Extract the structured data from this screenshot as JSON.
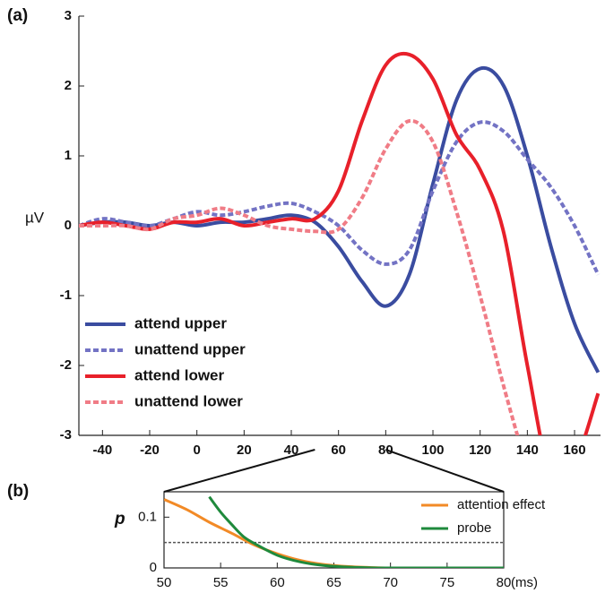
{
  "chart_data": [
    {
      "type": "line",
      "panel_label": "(a)",
      "ylabel": "µV",
      "x": [
        -50,
        -40,
        -30,
        -20,
        -10,
        0,
        10,
        20,
        30,
        40,
        50,
        60,
        70,
        80,
        90,
        100,
        110,
        120,
        130,
        140,
        150,
        160,
        170
      ],
      "xlim": [
        -50,
        171
      ],
      "xticks": [
        -40,
        -20,
        0,
        20,
        40,
        60,
        80,
        100,
        120,
        140,
        160
      ],
      "ylim": [
        -3,
        3
      ],
      "yticks": [
        -3,
        -2,
        -1,
        0,
        1,
        2,
        3
      ],
      "series": [
        {
          "name": "attend upper",
          "color": "#3a4ca0",
          "dashed": false,
          "values": [
            0,
            0.05,
            0.05,
            0,
            0.05,
            0,
            0.05,
            0.05,
            0.1,
            0.15,
            0.05,
            -0.3,
            -0.8,
            -1.15,
            -0.7,
            0.6,
            1.8,
            2.25,
            2.0,
            1.0,
            -0.3,
            -1.4,
            -2.1
          ]
        },
        {
          "name": "unattend upper",
          "color": "#7373c4",
          "dashed": true,
          "values": [
            0,
            0.1,
            0.05,
            0,
            0.1,
            0.2,
            0.15,
            0.2,
            0.28,
            0.32,
            0.2,
            0,
            -0.35,
            -0.55,
            -0.35,
            0.5,
            1.2,
            1.48,
            1.35,
            0.95,
            0.55,
            0,
            -0.7
          ]
        },
        {
          "name": "attend lower",
          "color": "#e8202a",
          "dashed": false,
          "values": [
            0,
            0.05,
            0,
            -0.05,
            0.05,
            0.05,
            0.1,
            0,
            0.05,
            0.1,
            0.1,
            0.5,
            1.5,
            2.3,
            2.45,
            2.1,
            1.3,
            0.8,
            -0.1,
            -2.0,
            -3.6,
            -3.4,
            -2.4
          ]
        },
        {
          "name": "unattend lower",
          "color": "#f07c86",
          "dashed": true,
          "values": [
            0,
            0,
            0,
            -0.05,
            0.1,
            0.15,
            0.25,
            0.15,
            0,
            -0.05,
            -0.08,
            -0.05,
            0.4,
            1.1,
            1.5,
            1.2,
            0.2,
            -1.0,
            -2.3,
            -3.5,
            null,
            null,
            null
          ]
        }
      ]
    },
    {
      "type": "line",
      "panel_label": "(b)",
      "ylabel": "p",
      "xlabel": "(ms)",
      "xlim": [
        50,
        80
      ],
      "xticks": [
        50,
        55,
        60,
        65,
        70,
        75,
        80
      ],
      "ylim": [
        0,
        0.15
      ],
      "yticks": [
        0,
        0.1
      ],
      "threshold": 0.05,
      "series": [
        {
          "name": "attention effect",
          "color": "#f28a26",
          "dashed": false,
          "x": [
            50,
            52,
            54,
            56,
            58,
            60,
            62,
            64,
            66,
            68,
            70,
            75,
            80
          ],
          "values": [
            0.135,
            0.115,
            0.09,
            0.068,
            0.045,
            0.028,
            0.015,
            0.007,
            0.003,
            0.001,
            0,
            0,
            0
          ]
        },
        {
          "name": "probe",
          "color": "#1f8a3c",
          "dashed": false,
          "x": [
            54,
            55,
            56,
            57,
            58,
            60,
            62,
            64,
            66,
            68,
            70,
            75,
            80
          ],
          "values": [
            0.14,
            0.11,
            0.085,
            0.062,
            0.048,
            0.025,
            0.012,
            0.005,
            0.002,
            0.0005,
            0,
            0,
            0
          ]
        }
      ]
    }
  ]
}
